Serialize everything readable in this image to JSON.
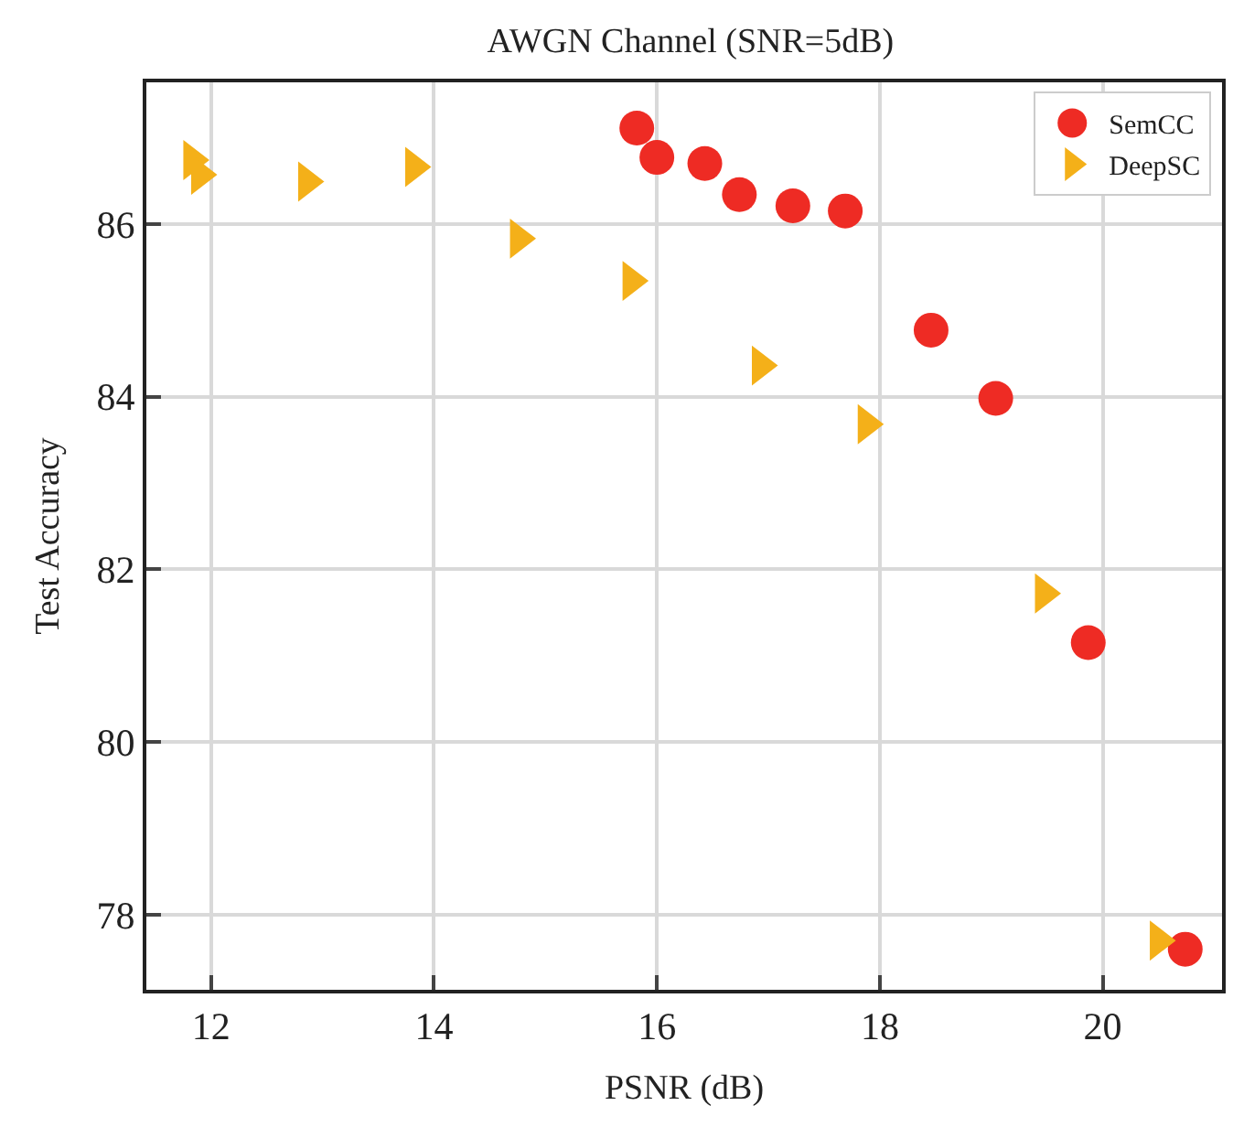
{
  "chart_data": {
    "type": "scatter",
    "title": "AWGN Channel (SNR=5dB)",
    "xlabel": "PSNR (dB)",
    "ylabel": "Test Accuracy",
    "xlim": [
      11.42,
      21.07
    ],
    "ylim": [
      77.13,
      87.64
    ],
    "xticks": [
      12,
      14,
      16,
      18,
      20
    ],
    "yticks": [
      78,
      80,
      82,
      84,
      86
    ],
    "grid": true,
    "legend": "top right",
    "series": [
      {
        "name": "SemCC",
        "color": "#ee2b24",
        "marker": "circle",
        "x": [
          15.82,
          16.0,
          16.43,
          16.74,
          17.22,
          17.69,
          18.46,
          19.04,
          19.87,
          20.74
        ],
        "values": [
          87.11,
          86.77,
          86.7,
          86.34,
          86.21,
          86.15,
          84.77,
          83.98,
          81.15,
          77.6
        ]
      },
      {
        "name": "DeepSC",
        "color": "#f4b019",
        "marker": "triangle",
        "x": [
          11.83,
          11.9,
          12.86,
          13.82,
          14.76,
          15.77,
          16.93,
          17.88,
          19.47,
          20.5
        ],
        "values": [
          86.74,
          86.57,
          86.49,
          86.66,
          85.83,
          85.34,
          84.36,
          83.68,
          81.72,
          77.7
        ]
      }
    ]
  }
}
